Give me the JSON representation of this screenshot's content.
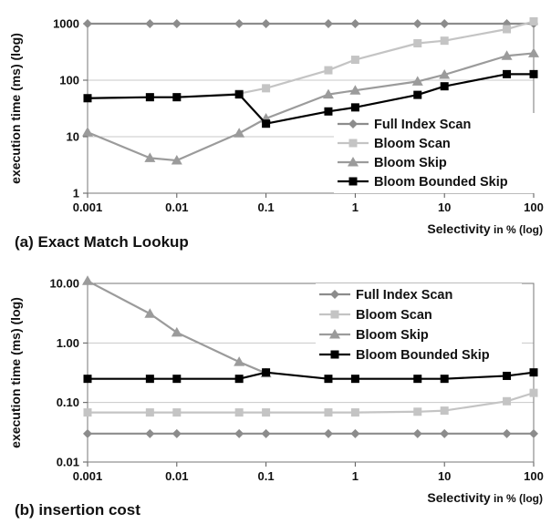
{
  "chart_data": [
    {
      "type": "line",
      "caption": "(a) Exact Match Lookup",
      "xlabel": "Selectivity",
      "xlabel_suffix": " in % (log)",
      "ylabel": "execution time (ms) (log)",
      "x_scale": "log",
      "y_scale": "log",
      "xlim": [
        0.001,
        100
      ],
      "ylim": [
        1,
        1000
      ],
      "x_ticks": [
        "0.001",
        "0.01",
        "0.1",
        "1",
        "10",
        "100"
      ],
      "y_ticks": [
        "1",
        "10",
        "100",
        "1000"
      ],
      "grid": "horizontal",
      "legend_position": "bottom-right",
      "x": [
        0.001,
        0.005,
        0.01,
        0.05,
        0.1,
        0.5,
        1,
        5,
        10,
        50,
        100
      ],
      "series": [
        {
          "name": "Full Index Scan",
          "color": "#8c8c8c",
          "marker": "diamond",
          "values": [
            1000,
            1000,
            1000,
            1000,
            1000,
            1000,
            1000,
            1000,
            1000,
            1000,
            1000
          ]
        },
        {
          "name": "Bloom Scan",
          "color": "#c4c4c4",
          "marker": "square",
          "values": [
            48,
            50,
            50,
            58,
            72,
            150,
            230,
            450,
            500,
            800,
            1100
          ]
        },
        {
          "name": "Bloom Skip",
          "color": "#9b9b9b",
          "marker": "triangle",
          "values": [
            12,
            4.2,
            3.8,
            11.5,
            21,
            56,
            66,
            95,
            125,
            270,
            300
          ]
        },
        {
          "name": "Bloom Bounded Skip",
          "color": "#000000",
          "marker": "square",
          "values": [
            48,
            50,
            50,
            56,
            17,
            28,
            33,
            55,
            78,
            128,
            128
          ]
        }
      ]
    },
    {
      "type": "line",
      "caption": "(b) insertion cost",
      "xlabel": "Selectivity",
      "xlabel_suffix": " in % (log)",
      "ylabel": "execution time (ms) (log)",
      "x_scale": "log",
      "y_scale": "log",
      "xlim": [
        0.001,
        100
      ],
      "ylim": [
        0.01,
        10
      ],
      "x_ticks": [
        "0.001",
        "0.01",
        "0.1",
        "1",
        "10",
        "100"
      ],
      "y_ticks": [
        "0.01",
        "0.10",
        "1.00",
        "10.00"
      ],
      "grid": "horizontal",
      "legend_position": "top-right",
      "x": [
        0.001,
        0.005,
        0.01,
        0.05,
        0.1,
        0.5,
        1,
        5,
        10,
        50,
        100
      ],
      "series": [
        {
          "name": "Full Index Scan",
          "color": "#8c8c8c",
          "marker": "diamond",
          "values": [
            0.03,
            0.03,
            0.03,
            0.03,
            0.03,
            0.03,
            0.03,
            0.03,
            0.03,
            0.03,
            0.03
          ]
        },
        {
          "name": "Bloom Scan",
          "color": "#c4c4c4",
          "marker": "square",
          "values": [
            0.068,
            0.068,
            0.068,
            0.068,
            0.068,
            0.068,
            0.068,
            0.07,
            0.073,
            0.105,
            0.145
          ]
        },
        {
          "name": "Bloom Skip",
          "color": "#9b9b9b",
          "marker": "triangle",
          "values": [
            11,
            3.1,
            1.5,
            0.48,
            0.31,
            null,
            null,
            null,
            null,
            null,
            null
          ]
        },
        {
          "name": "Bloom Bounded Skip",
          "color": "#000000",
          "marker": "square",
          "values": [
            0.25,
            0.25,
            0.25,
            0.25,
            0.32,
            0.25,
            0.25,
            0.25,
            0.25,
            0.28,
            0.32
          ]
        }
      ]
    }
  ]
}
